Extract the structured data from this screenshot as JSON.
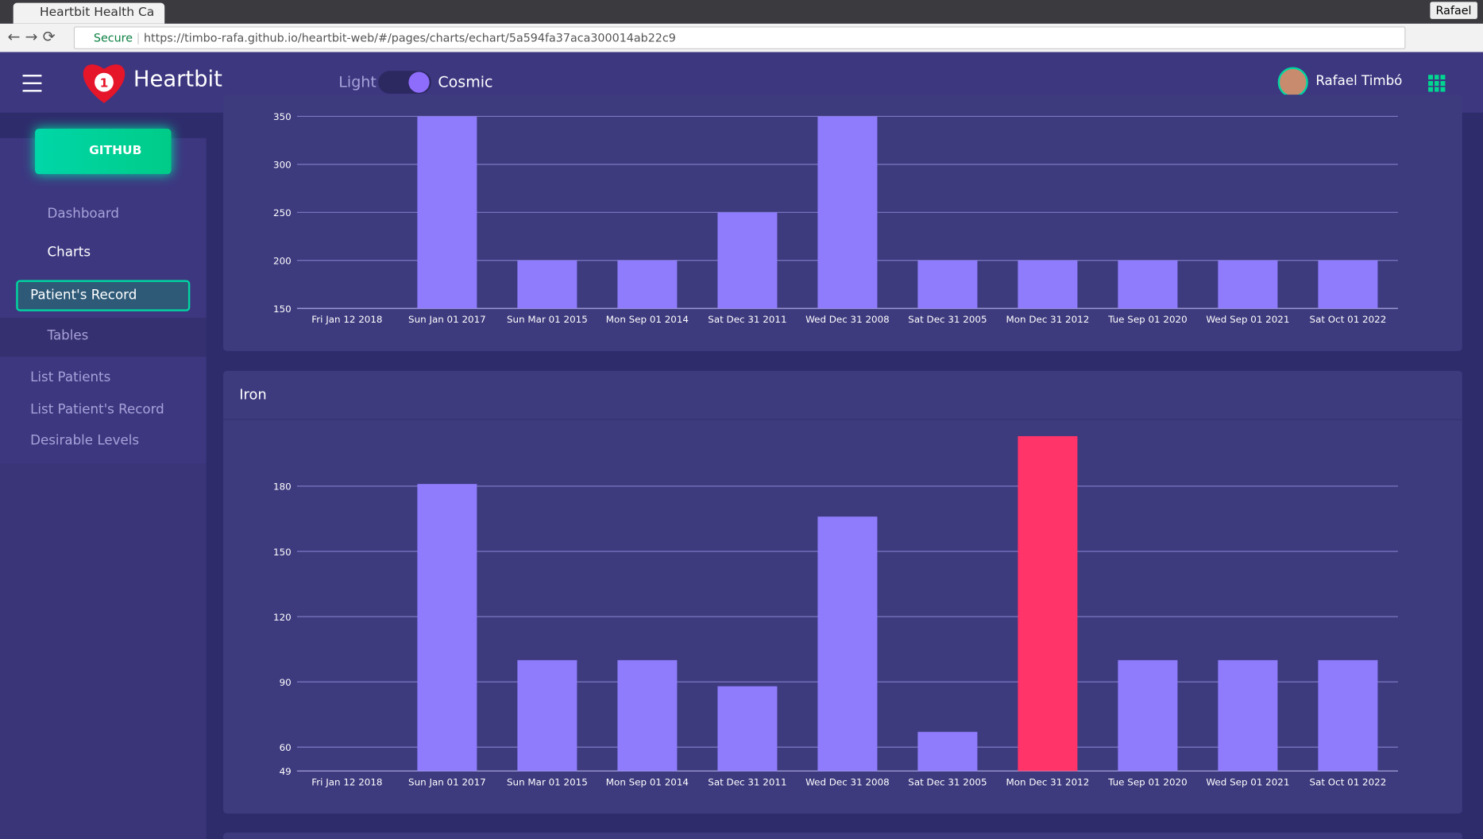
{
  "browser": {
    "tab_title": "Heartbit Health Ca",
    "user": "Rafael",
    "secure": "Secure",
    "url": "https://timbo-rafa.github.io/heartbit-web/#/pages/charts/echart/5a594fa37aca300014ab22c9"
  },
  "header": {
    "brand": "Heartbit",
    "badge": "1",
    "theme_light": "Light",
    "theme_cosmic": "Cosmic",
    "user_name": "Rafael Timbó"
  },
  "sidebar": {
    "github": "GITHUB",
    "items": [
      "Dashboard",
      "Charts",
      "Patient's Record",
      "Tables",
      "List Patients",
      "List Patient's Record",
      "Desirable Levels"
    ]
  },
  "chart_data": [
    {
      "type": "bar",
      "categories": [
        "Fri Jan 12 2018",
        "Sun Jan 01 2017",
        "Sun Mar 01 2015",
        "Mon Sep 01 2014",
        "Sat Dec 31 2011",
        "Wed Dec 31 2008",
        "Sat Dec 31 2005",
        "Mon Dec 31 2012",
        "Tue Sep 01 2020",
        "Wed Sep 01 2021",
        "Sat Oct 01 2022"
      ],
      "values": [
        null,
        350,
        200,
        200,
        250,
        350,
        200,
        200,
        200,
        200,
        200
      ],
      "color": "#8f7cfc",
      "ylim": [
        150,
        350
      ],
      "yticks": [
        150,
        200,
        250,
        300,
        350
      ],
      "grid": true
    },
    {
      "type": "bar",
      "title": "Iron",
      "categories": [
        "Fri Jan 12 2018",
        "Sun Jan 01 2017",
        "Sun Mar 01 2015",
        "Mon Sep 01 2014",
        "Sat Dec 31 2011",
        "Wed Dec 31 2008",
        "Sat Dec 31 2005",
        "Mon Dec 31 2012",
        "Tue Sep 01 2020",
        "Wed Sep 01 2021",
        "Sat Oct 01 2022"
      ],
      "values": [
        null,
        181,
        100,
        100,
        88,
        166,
        67,
        203,
        100,
        100,
        100
      ],
      "colors": [
        "#8f7cfc",
        "#8f7cfc",
        "#8f7cfc",
        "#8f7cfc",
        "#8f7cfc",
        "#8f7cfc",
        "#8f7cfc",
        "#ff3468",
        "#8f7cfc",
        "#8f7cfc",
        "#8f7cfc"
      ],
      "ylim": [
        49,
        203
      ],
      "yticks": [
        49,
        60,
        90,
        120,
        150,
        180
      ],
      "grid": true
    }
  ]
}
